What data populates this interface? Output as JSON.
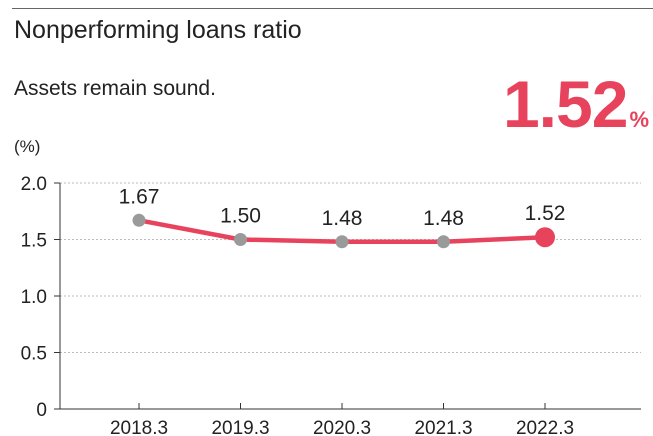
{
  "title": "Nonperforming loans ratio",
  "subtitle": "Assets remain sound.",
  "headline": {
    "value": "1.52",
    "unit": "%"
  },
  "colors": {
    "accent": "#e8435d",
    "marker": "#9a9a9a",
    "grid": "#bbbbbb",
    "axis": "#333333"
  },
  "chart_data": {
    "type": "line",
    "ylabel": "(%)",
    "categories": [
      "2018.3",
      "2019.3",
      "2020.3",
      "2021.3",
      "2022.3"
    ],
    "values": [
      1.67,
      1.5,
      1.48,
      1.48,
      1.52
    ],
    "data_labels": [
      "1.67",
      "1.50",
      "1.48",
      "1.48",
      "1.52"
    ],
    "ylim": [
      0,
      2.0
    ],
    "yticks": [
      0,
      0.5,
      1.0,
      1.5,
      2.0
    ],
    "ytick_labels": [
      "0",
      "0.5",
      "1.0",
      "1.5",
      "2.0"
    ],
    "grid": true,
    "highlight_last": true
  }
}
